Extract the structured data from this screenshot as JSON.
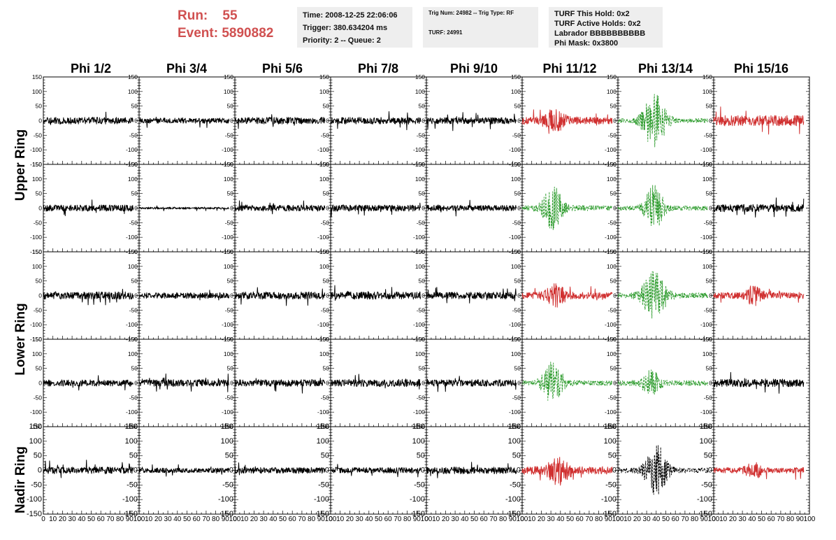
{
  "header": {
    "run_label": "Run:",
    "run_value": "55",
    "event_label": "Event:",
    "event_value": "5890882",
    "time": "Time: 2008-12-25 22:06:06",
    "trigger": "Trigger: 380.634204 ms",
    "priority": "Priority: 2 -- Queue: 2",
    "trig_num": "Trig Num: 24982 -- Trig Type: RF",
    "turf": "TURF: 24991",
    "turf_this_hold": "TURF This Hold: 0x2",
    "turf_active_holds": "TURF Active Holds: 0x2",
    "labrador": "Labrador BBBBBBBBBB",
    "phi_mask": "Phi Mask: 0x3800"
  },
  "colors": {
    "trace_default": "#000000",
    "trace_red": "#d03030",
    "trace_green": "#2a9a2a",
    "run_text": "#d05050",
    "info_box_bg": "#eeeeee"
  },
  "chart_data": {
    "type": "line",
    "columns": [
      "Phi 1/2",
      "Phi 3/4",
      "Phi 5/6",
      "Phi 7/8",
      "Phi 9/10",
      "Phi 11/12",
      "Phi 13/14",
      "Phi 15/16"
    ],
    "ring_labels": [
      "Upper Ring",
      "Lower Ring",
      "Nadir Ring"
    ],
    "rows_per_ring": [
      2,
      2,
      1
    ],
    "xlim": [
      0,
      100
    ],
    "ylim": [
      -150,
      150
    ],
    "x_ticks": [
      0,
      10,
      20,
      30,
      40,
      50,
      60,
      70,
      80,
      90,
      100
    ],
    "x_tick_labels": [
      "0",
      "10",
      "20",
      "30",
      "40",
      "50",
      "60",
      "70",
      "80",
      "90",
      "100"
    ],
    "y_ticks": [
      -150,
      -100,
      -50,
      0,
      50,
      100,
      150
    ],
    "y_tick_labels": [
      "-150",
      "-100",
      "-50",
      "0",
      "50",
      "100",
      "150"
    ],
    "trace_x_range": [
      0,
      94
    ],
    "panels": [
      [
        {
          "style": "solid",
          "color": "black",
          "amp": 13,
          "spikes": 18
        },
        {
          "style": "solid",
          "color": "black",
          "amp": 10,
          "spikes": 15
        },
        {
          "style": "solid",
          "color": "black",
          "amp": 13,
          "spikes": 18
        },
        {
          "style": "solid",
          "color": "black",
          "amp": 13,
          "spikes": 20
        },
        {
          "style": "solid",
          "color": "black",
          "amp": 12,
          "spikes": 25
        },
        {
          "style": "solid",
          "color": "red",
          "amp": 14,
          "spikes": 25,
          "burst": {
            "center": 35,
            "width": 15,
            "amp": 35
          }
        },
        {
          "style": "dashed",
          "color": "green",
          "amp": 8,
          "burst": {
            "center": 38,
            "width": 18,
            "amp": 100
          }
        },
        {
          "style": "solid",
          "color": "red",
          "amp": 20,
          "spikes": 30
        }
      ],
      [
        {
          "style": "solid",
          "color": "black",
          "amp": 12,
          "spikes": 18
        },
        {
          "style": "solid",
          "color": "black",
          "amp": 4,
          "spikes": 6
        },
        {
          "style": "solid",
          "color": "black",
          "amp": 12,
          "spikes": 18
        },
        {
          "style": "solid",
          "color": "black",
          "amp": 12,
          "spikes": 18
        },
        {
          "style": "solid",
          "color": "black",
          "amp": 11,
          "spikes": 18
        },
        {
          "style": "dashed",
          "color": "green",
          "amp": 10,
          "burst": {
            "center": 32,
            "width": 15,
            "amp": 80
          }
        },
        {
          "style": "dashed",
          "color": "green",
          "amp": 9,
          "burst": {
            "center": 38,
            "width": 14,
            "amp": 85
          }
        },
        {
          "style": "solid",
          "color": "black",
          "amp": 14,
          "spikes": 22
        }
      ],
      [
        {
          "style": "solid",
          "color": "black",
          "amp": 14,
          "spikes": 20
        },
        {
          "style": "solid",
          "color": "black",
          "amp": 11,
          "spikes": 18
        },
        {
          "style": "solid",
          "color": "black",
          "amp": 14,
          "spikes": 22
        },
        {
          "style": "solid",
          "color": "black",
          "amp": 14,
          "spikes": 24
        },
        {
          "style": "solid",
          "color": "black",
          "amp": 13,
          "spikes": 20
        },
        {
          "style": "solid",
          "color": "red",
          "amp": 12,
          "spikes": 20,
          "burst": {
            "center": 35,
            "width": 15,
            "amp": 35
          }
        },
        {
          "style": "dashed",
          "color": "green",
          "amp": 10,
          "burst": {
            "center": 38,
            "width": 18,
            "amp": 85
          }
        },
        {
          "style": "solid",
          "color": "red",
          "amp": 12,
          "spikes": 20,
          "burst": {
            "center": 42,
            "width": 12,
            "amp": 30
          }
        }
      ],
      [
        {
          "style": "solid",
          "color": "black",
          "amp": 12,
          "spikes": 18
        },
        {
          "style": "solid",
          "color": "black",
          "amp": 13,
          "spikes": 20
        },
        {
          "style": "solid",
          "color": "black",
          "amp": 13,
          "spikes": 22
        },
        {
          "style": "solid",
          "color": "black",
          "amp": 14,
          "spikes": 20
        },
        {
          "style": "solid",
          "color": "black",
          "amp": 13,
          "spikes": 18
        },
        {
          "style": "dashed",
          "color": "green",
          "amp": 10,
          "burst": {
            "center": 32,
            "width": 15,
            "amp": 75
          }
        },
        {
          "style": "dashed",
          "color": "green",
          "amp": 10,
          "burst": {
            "center": 35,
            "width": 14,
            "amp": 45
          }
        },
        {
          "style": "solid",
          "color": "black",
          "amp": 15,
          "spikes": 22
        }
      ],
      [
        {
          "style": "solid",
          "color": "black",
          "amp": 13,
          "spikes": 25
        },
        {
          "style": "solid",
          "color": "black",
          "amp": 9,
          "spikes": 14
        },
        {
          "style": "solid",
          "color": "black",
          "amp": 11,
          "spikes": 16
        },
        {
          "style": "solid",
          "color": "black",
          "amp": 11,
          "spikes": 16
        },
        {
          "style": "solid",
          "color": "black",
          "amp": 13,
          "spikes": 18
        },
        {
          "style": "solid",
          "color": "red",
          "amp": 15,
          "spikes": 25,
          "burst": {
            "center": 38,
            "width": 16,
            "amp": 45
          }
        },
        {
          "style": "dashed",
          "color": "black",
          "amp": 10,
          "burst": {
            "center": 40,
            "width": 16,
            "amp": 95
          }
        },
        {
          "style": "solid",
          "color": "red",
          "amp": 11,
          "spikes": 20,
          "burst": {
            "center": 42,
            "width": 12,
            "amp": 25
          }
        }
      ]
    ]
  }
}
